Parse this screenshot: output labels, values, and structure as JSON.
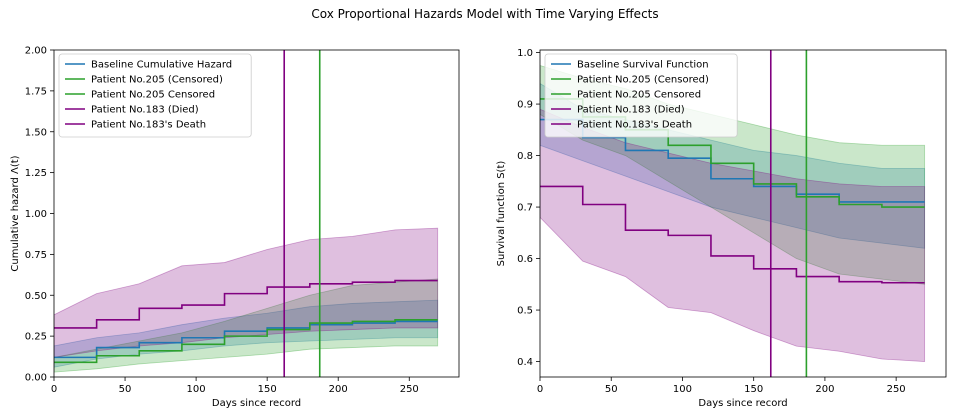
{
  "figure": {
    "title": "Cox Proportional Hazards Model with Time Varying Effects"
  },
  "chart_data": [
    {
      "type": "line",
      "xlabel": "Days since record",
      "ylabel": "Cumulative hazard Λ(t)",
      "xlim": [
        0,
        285
      ],
      "ylim": [
        0,
        2.0
      ],
      "xticks": [
        0,
        50,
        100,
        150,
        200,
        250
      ],
      "xtick_labels": [
        "0",
        "50",
        "100",
        "150",
        "200",
        "250"
      ],
      "yticks": [
        0,
        0.25,
        0.5,
        0.75,
        1.0,
        1.25,
        1.5,
        1.75,
        2.0
      ],
      "ytick_labels": [
        "0.00",
        "0.25",
        "0.50",
        "0.75",
        "1.00",
        "1.25",
        "1.50",
        "1.75",
        "2.00"
      ],
      "legend_position": "top-left",
      "grid": false,
      "series": [
        {
          "name": "Baseline Cumulative Hazard",
          "color": "#1f77b4",
          "x": [
            0,
            30,
            60,
            90,
            120,
            150,
            180,
            210,
            240,
            270
          ],
          "y": [
            0.12,
            0.18,
            0.21,
            0.24,
            0.28,
            0.3,
            0.32,
            0.33,
            0.34,
            0.34
          ],
          "ci_lower": [
            0.06,
            0.11,
            0.14,
            0.16,
            0.19,
            0.21,
            0.22,
            0.23,
            0.24,
            0.24
          ],
          "ci_upper": [
            0.19,
            0.24,
            0.27,
            0.32,
            0.36,
            0.39,
            0.43,
            0.45,
            0.46,
            0.47
          ],
          "band_color": "#1f77b4",
          "band_opacity": 0.25
        },
        {
          "name": "Patient No.205 (Censored)",
          "color": "#2ca02c",
          "x": [
            0,
            30,
            60,
            90,
            120,
            150,
            180,
            210,
            240,
            270
          ],
          "y": [
            0.09,
            0.13,
            0.16,
            0.2,
            0.25,
            0.29,
            0.33,
            0.34,
            0.35,
            0.35
          ],
          "ci_lower": [
            0.03,
            0.05,
            0.08,
            0.1,
            0.12,
            0.14,
            0.17,
            0.18,
            0.19,
            0.19
          ],
          "ci_upper": [
            0.12,
            0.17,
            0.22,
            0.27,
            0.34,
            0.42,
            0.5,
            0.56,
            0.58,
            0.6
          ],
          "band_color": "#2ca02c",
          "band_opacity": 0.25
        },
        {
          "name": "Patient No.183 (Died)",
          "color": "#800080",
          "x": [
            0,
            30,
            60,
            90,
            120,
            150,
            180,
            210,
            240,
            270
          ],
          "y": [
            0.3,
            0.35,
            0.42,
            0.44,
            0.51,
            0.55,
            0.57,
            0.58,
            0.59,
            0.59
          ],
          "ci_lower": [
            0.12,
            0.16,
            0.19,
            0.21,
            0.24,
            0.26,
            0.28,
            0.29,
            0.3,
            0.3
          ],
          "ci_upper": [
            0.38,
            0.51,
            0.57,
            0.68,
            0.7,
            0.78,
            0.84,
            0.86,
            0.9,
            0.91
          ],
          "band_color": "#800080",
          "band_opacity": 0.25
        }
      ],
      "vlines": [
        {
          "name": "Patient No.205 Censored",
          "x": 187,
          "color": "#2ca02c"
        },
        {
          "name": "Patient No.183's Death",
          "x": 162,
          "color": "#800080"
        }
      ],
      "legend": [
        {
          "label": "Baseline Cumulative Hazard",
          "color": "#1f77b4"
        },
        {
          "label": "Patient No.205 (Censored)",
          "color": "#2ca02c"
        },
        {
          "label": "Patient No.205 Censored",
          "color": "#2ca02c"
        },
        {
          "label": "Patient No.183 (Died)",
          "color": "#800080"
        },
        {
          "label": "Patient No.183's Death",
          "color": "#800080"
        }
      ]
    },
    {
      "type": "line",
      "xlabel": "Days since record",
      "ylabel": "Survival function S(t)",
      "xlim": [
        0,
        285
      ],
      "ylim": [
        0.37,
        1.005
      ],
      "xticks": [
        0,
        50,
        100,
        150,
        200,
        250
      ],
      "xtick_labels": [
        "0",
        "50",
        "100",
        "150",
        "200",
        "250"
      ],
      "yticks": [
        0.4,
        0.5,
        0.6,
        0.7,
        0.8,
        0.9,
        1.0
      ],
      "ytick_labels": [
        "0.4",
        "0.5",
        "0.6",
        "0.7",
        "0.8",
        "0.9",
        "1.0"
      ],
      "legend_position": "top-left",
      "grid": false,
      "series": [
        {
          "name": "Baseline Survival Function",
          "color": "#1f77b4",
          "x": [
            0,
            30,
            60,
            90,
            120,
            150,
            180,
            210,
            240,
            270
          ],
          "y": [
            0.87,
            0.835,
            0.81,
            0.795,
            0.755,
            0.74,
            0.725,
            0.71,
            0.71,
            0.71
          ],
          "ci_lower": [
            0.82,
            0.79,
            0.76,
            0.73,
            0.7,
            0.68,
            0.66,
            0.64,
            0.63,
            0.62
          ],
          "ci_upper": [
            0.94,
            0.89,
            0.87,
            0.85,
            0.83,
            0.81,
            0.8,
            0.785,
            0.775,
            0.775
          ],
          "band_color": "#1f77b4",
          "band_opacity": 0.25
        },
        {
          "name": "Patient No.205 (Censored)",
          "color": "#2ca02c",
          "x": [
            0,
            30,
            60,
            90,
            120,
            150,
            180,
            210,
            240,
            270
          ],
          "y": [
            0.91,
            0.875,
            0.85,
            0.82,
            0.785,
            0.745,
            0.72,
            0.705,
            0.7,
            0.7
          ],
          "ci_lower": [
            0.88,
            0.83,
            0.8,
            0.75,
            0.7,
            0.65,
            0.6,
            0.57,
            0.56,
            0.55
          ],
          "ci_upper": [
            0.975,
            0.95,
            0.93,
            0.9,
            0.88,
            0.86,
            0.84,
            0.825,
            0.82,
            0.82
          ],
          "band_color": "#2ca02c",
          "band_opacity": 0.25
        },
        {
          "name": "Patient No.183 (Died)",
          "color": "#800080",
          "x": [
            0,
            30,
            60,
            90,
            120,
            150,
            180,
            210,
            240,
            270
          ],
          "y": [
            0.74,
            0.705,
            0.655,
            0.645,
            0.605,
            0.58,
            0.565,
            0.555,
            0.553,
            0.553
          ],
          "ci_lower": [
            0.68,
            0.595,
            0.565,
            0.505,
            0.495,
            0.46,
            0.43,
            0.42,
            0.405,
            0.4
          ],
          "ci_upper": [
            0.89,
            0.855,
            0.825,
            0.805,
            0.785,
            0.77,
            0.755,
            0.745,
            0.74,
            0.74
          ],
          "band_color": "#800080",
          "band_opacity": 0.25
        }
      ],
      "vlines": [
        {
          "name": "Patient No.205 Censored",
          "x": 187,
          "color": "#2ca02c"
        },
        {
          "name": "Patient No.183's Death",
          "x": 162,
          "color": "#800080"
        }
      ],
      "legend": [
        {
          "label": "Baseline Survival Function",
          "color": "#1f77b4"
        },
        {
          "label": "Patient No.205 (Censored)",
          "color": "#2ca02c"
        },
        {
          "label": "Patient No.205 Censored",
          "color": "#2ca02c"
        },
        {
          "label": "Patient No.183 (Died)",
          "color": "#800080"
        },
        {
          "label": "Patient No.183's Death",
          "color": "#800080"
        }
      ]
    }
  ]
}
